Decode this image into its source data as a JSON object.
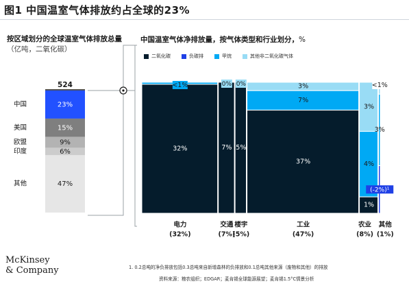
{
  "title": "图1 中国温室气体排放约占全球的23%",
  "left_title": "按区域划分的全球温室气体排放总量",
  "left_unit": "（亿吨，二氧化碳）",
  "right_title": "中国温室气体净排放量，按气体类型和行业划分，",
  "right_unit": "%",
  "logo_lines": [
    "McKinsey",
    "& Company"
  ],
  "footnote": "1.   0.2总吨的净负排放包括0.3总吨来自新增森林的负排放和0.1总吨其他来源（废物和其他）的排放",
  "source": "资料来源：粮农组织；EDGAR；麦肯锡全球能源展望；麦肯锡1.5°C情景分析",
  "colors": {
    "co2": "#051c2c",
    "carbon_sink": "#1f40e6",
    "methane": "#00a9f4",
    "other_non_co2": "#99dcf5",
    "china": "#2251ff",
    "us": "#7f7f7f",
    "eu": "#b3b3b3",
    "india": "#cccccc",
    "other_region": "#e6e6e6"
  },
  "chart_data": [
    {
      "type": "bar",
      "title": "按区域划分的全球温室气体排放总量（亿吨，二氧化碳）",
      "total": "524",
      "categories": [
        "中国",
        "美国",
        "欧盟",
        "印度",
        "其他"
      ],
      "values": [
        23,
        15,
        9,
        6,
        47
      ],
      "value_labels": [
        "23%",
        "15%",
        "9%",
        "6%",
        "47%"
      ]
    },
    {
      "type": "bar",
      "title": "中国温室气体净排放量，按气体类型和行业划分，%",
      "legend": [
        "二氧化碳",
        "负碳排",
        "甲烷",
        "其他非二氧化碳气体"
      ],
      "sectors": [
        {
          "name": "电力",
          "share_label": "(32%)",
          "share": 32,
          "segments": [
            {
              "gas": "二氧化碳",
              "value": 32,
              "label": "32%"
            },
            {
              "gas": "甲烷",
              "value": 0.5,
              "label": "<1%"
            }
          ]
        },
        {
          "name": "交通",
          "share_label": "(7%)",
          "share": 7,
          "segments": [
            {
              "gas": "二氧化碳",
              "value": 7,
              "label": "7%"
            },
            {
              "gas": "其他非二氧化碳气体",
              "value": 0,
              "label": "0%"
            }
          ]
        },
        {
          "name": "楼宇",
          "share_label": "(5%)",
          "share": 5,
          "segments": [
            {
              "gas": "二氧化碳",
              "value": 5,
              "label": "5%"
            },
            {
              "gas": "其他非二氧化碳气体",
              "value": 0,
              "label": "0%"
            }
          ]
        },
        {
          "name": "工业",
          "share_label": "(47%)",
          "share": 47,
          "segments": [
            {
              "gas": "二氧化碳",
              "value": 37,
              "label": "37%"
            },
            {
              "gas": "甲烷",
              "value": 7,
              "label": "7%"
            },
            {
              "gas": "其他非二氧化碳气体",
              "value": 3,
              "label": "3%"
            }
          ]
        },
        {
          "name": "农业",
          "share_label": "(8%)",
          "share": 8,
          "segments": [
            {
              "gas": "二氧化碳",
              "value": 1,
              "label": "1%"
            },
            {
              "gas": "甲烷",
              "value": 4,
              "label": "4%"
            },
            {
              "gas": "其他非二氧化碳气体",
              "value": 3,
              "label": "3%"
            }
          ]
        },
        {
          "name": "其他",
          "share_label": "(1%)",
          "share": 1,
          "segments": [
            {
              "gas": "负碳排",
              "value": -2,
              "label": "(-2%)¹"
            },
            {
              "gas": "甲烷",
              "value": 3,
              "label": "3%"
            },
            {
              "gas": "其他非二氧化碳气体",
              "value": 0.5,
              "label": "<1%"
            }
          ]
        }
      ]
    }
  ]
}
